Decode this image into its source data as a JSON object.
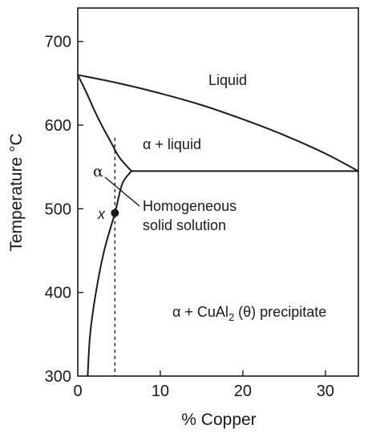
{
  "chart_data": {
    "type": "line",
    "xlabel": "% Copper",
    "ylabel": "Temperature °C",
    "xlim": [
      0,
      34
    ],
    "ylim": [
      300,
      740
    ],
    "x_ticks": [
      0,
      10,
      20,
      30
    ],
    "y_ticks": [
      300,
      400,
      500,
      600,
      700
    ],
    "grid": false,
    "series": [
      {
        "role": "liquidus",
        "x": [
          0,
          5,
          10,
          15,
          20,
          25,
          30,
          34
        ],
        "y": [
          660,
          650,
          638,
          624,
          607,
          588,
          566,
          545
        ]
      },
      {
        "role": "solidus",
        "x": [
          0,
          1,
          2,
          3,
          4,
          5,
          6.5
        ],
        "y": [
          660,
          640,
          618,
          598,
          580,
          562,
          545
        ]
      },
      {
        "role": "eutectic",
        "x": [
          6.5,
          34
        ],
        "y": [
          545,
          545
        ]
      },
      {
        "role": "solvus",
        "x": [
          6.5,
          5.4,
          4.5,
          3.2,
          2.2,
          1.5,
          1.2
        ],
        "y": [
          545,
          530,
          495,
          450,
          400,
          350,
          300
        ]
      },
      {
        "role": "composition-line",
        "style": "dashed",
        "x": [
          4.5,
          4.5
        ],
        "y": [
          585,
          300
        ]
      }
    ],
    "points": [
      {
        "label": "x",
        "x": 4.5,
        "y": 495
      }
    ],
    "annotations": {
      "liquid": "Liquid",
      "alpha_liquid": "α + liquid",
      "alpha": "α",
      "homogeneous_1": "Homogeneous",
      "homogeneous_2": "solid solution",
      "precip_prefix": "α + CuAl",
      "precip_sub": "2",
      "precip_suffix": " (θ) precipitate"
    }
  }
}
